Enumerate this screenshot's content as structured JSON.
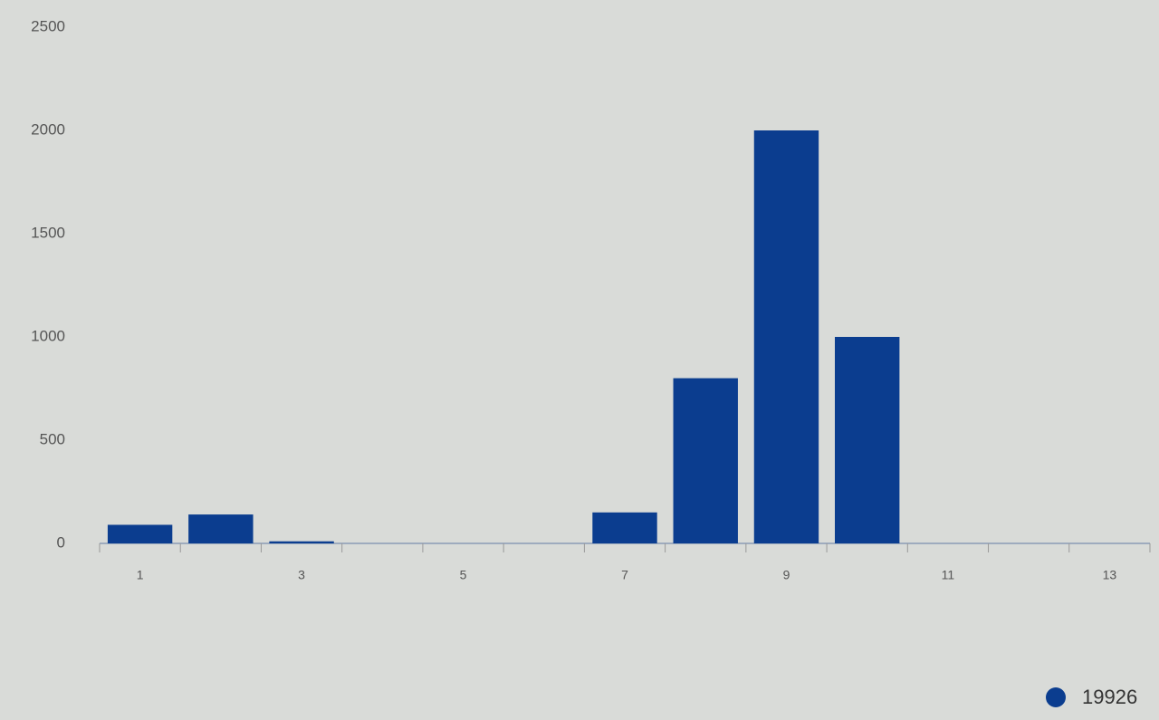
{
  "chart_data": {
    "type": "bar",
    "categories": [
      "1",
      null,
      "3",
      null,
      "5",
      null,
      "7",
      null,
      "9",
      null,
      "11",
      null,
      "13"
    ],
    "series": [
      {
        "name": "19926",
        "color": "#0b3d8f",
        "values": [
          90,
          140,
          10,
          null,
          null,
          null,
          150,
          800,
          2000,
          1000,
          null,
          null,
          null
        ]
      }
    ],
    "ylim": [
      0,
      2500
    ],
    "yticks": [
      0,
      500,
      1000,
      1500,
      2000,
      2500
    ],
    "grid": false,
    "legend": "bottom-right"
  }
}
